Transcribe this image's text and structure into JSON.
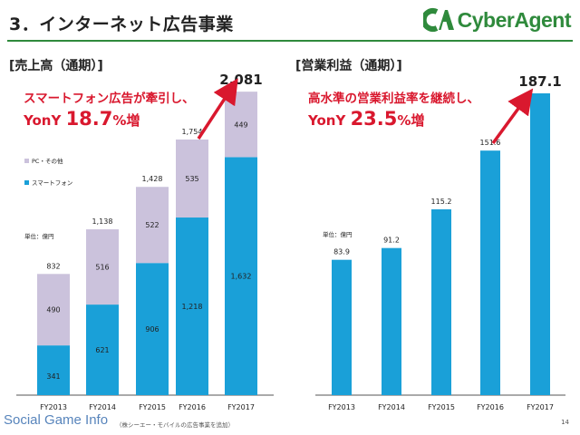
{
  "header": {
    "title": "3．インターネット広告事業",
    "logo_text": "CyberAgent",
    "logo_color": "#2f8a3c"
  },
  "left_panel": {
    "label": "[売上高（通期）]",
    "callout_line1": "スマートフォン広告が牽引し、",
    "callout_prefix": "YonY ",
    "callout_value": "18.7",
    "callout_suffix": "%増",
    "unit_label": "単位：億円"
  },
  "right_panel": {
    "label": "[営業利益（通期）]",
    "callout_line1": "高水準の営業利益率を継続し、",
    "callout_prefix": "YonY ",
    "callout_value": "23.5",
    "callout_suffix": "%増",
    "unit_label": "単位：億円"
  },
  "colors": {
    "smartphone": "#1aa0d8",
    "pc_other": "#cbc2dc",
    "accent_red": "#d9182e",
    "axis": "#555555"
  },
  "chart_data": [
    {
      "type": "bar",
      "stacked": true,
      "categories": [
        "FY2013",
        "FY2014",
        "FY2015",
        "FY2016",
        "FY2017"
      ],
      "series": [
        {
          "name": "スマートフォン",
          "values": [
            341,
            621,
            906,
            1218,
            1632
          ]
        },
        {
          "name": "PC・その他",
          "values": [
            490,
            516,
            522,
            535,
            449
          ]
        }
      ],
      "totals": [
        "832",
        "1,138",
        "1,428",
        "1,754",
        "2,081"
      ],
      "segment_labels": {
        "smartphone": [
          "341",
          "621",
          "906",
          "1,218",
          "1,632"
        ],
        "pc_other": [
          "490",
          "516",
          "522",
          "535",
          "449"
        ]
      },
      "ylim": [
        0,
        2200
      ],
      "legend": [
        "PC・その他",
        "スマートフォン"
      ],
      "legend_position": "left",
      "grid": false
    },
    {
      "type": "bar",
      "categories": [
        "FY2013",
        "FY2014",
        "FY2015",
        "FY2016",
        "FY2017"
      ],
      "values": [
        83.9,
        91.2,
        115.2,
        151.6,
        187.1
      ],
      "value_labels": [
        "83.9",
        "91.2",
        "115.2",
        "151.6",
        "187.1"
      ],
      "ylim": [
        0,
        195
      ],
      "grid": false
    }
  ],
  "footer": {
    "watermark": "Social Game Info",
    "footnote": "（株シーエー・モバイルの広告事業を追加）",
    "page_number": "14"
  }
}
